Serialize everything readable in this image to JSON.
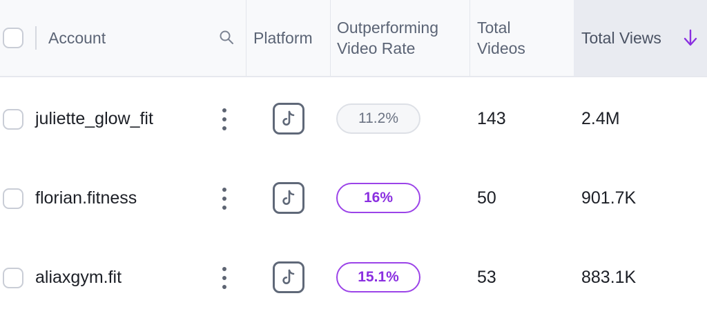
{
  "columns": {
    "account": "Account",
    "platform": "Platform",
    "outperforming_line1": "Outperforming",
    "outperforming_line2": "Video Rate",
    "total_videos_line1": "Total",
    "total_videos_line2": "Videos",
    "total_views": "Total Views"
  },
  "sort": {
    "column": "Total Views",
    "direction": "descending"
  },
  "colors": {
    "accent": "#8a2fe0",
    "header_bg": "#f8f9fb",
    "active_header_bg": "#e9ebf1"
  },
  "rows": [
    {
      "account": "juliette_glow_fit",
      "platform": "tiktok-icon",
      "rate": "11.2%",
      "rate_style": "neutral",
      "total_videos": "143",
      "total_views": "2.4M"
    },
    {
      "account": "florian.fitness",
      "platform": "tiktok-icon",
      "rate": "16%",
      "rate_style": "high",
      "total_videos": "50",
      "total_views": "901.7K"
    },
    {
      "account": "aliaxgym.fit",
      "platform": "tiktok-icon",
      "rate": "15.1%",
      "rate_style": "high",
      "total_videos": "53",
      "total_views": "883.1K"
    }
  ]
}
